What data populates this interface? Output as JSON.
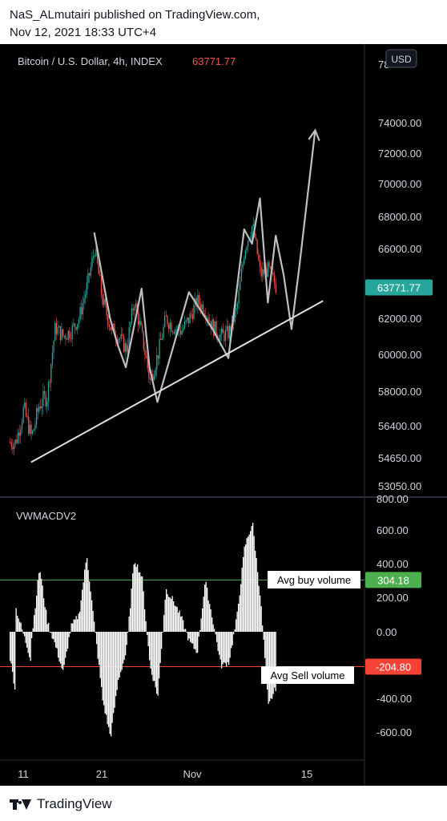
{
  "header": {
    "line1": "NaS_ALmutairi published on TradingView.com,",
    "line2": "Nov 12, 2021 18:33 UTC+4"
  },
  "footer": {
    "brand": "TradingView"
  },
  "colors": {
    "bull": "#26a69a",
    "bear": "#ef5350",
    "pattern": "#bfbfbf",
    "price_badge": "#26a69a",
    "buy_badge": "#4caf50",
    "sell_badge": "#f44336"
  },
  "chart_data": [
    {
      "type": "candlestick",
      "title": "Bitcoin / U.S. Dollar, 4h, INDEX",
      "last_price": "63771.77",
      "currency_button": "USD",
      "y_ticks": [
        "78",
        "74000.00",
        "72000.00",
        "70000.00",
        "68000.00",
        "66000.00",
        "62000.00",
        "60000.00",
        "58000.00",
        "56400.00",
        "54650.00",
        "53050.00"
      ],
      "close_path": [
        {
          "date": "2021-10-10",
          "price": 55500
        },
        {
          "date": "2021-10-11",
          "price": 57200
        },
        {
          "date": "2021-10-12",
          "price": 55800
        },
        {
          "date": "2021-10-13",
          "price": 57400
        },
        {
          "date": "2021-10-14",
          "price": 57800
        },
        {
          "date": "2021-10-15",
          "price": 61500
        },
        {
          "date": "2021-10-16",
          "price": 61000
        },
        {
          "date": "2021-10-17",
          "price": 61300
        },
        {
          "date": "2021-10-18",
          "price": 62000
        },
        {
          "date": "2021-10-19",
          "price": 63800
        },
        {
          "date": "2021-10-20",
          "price": 66000
        },
        {
          "date": "2021-10-21",
          "price": 63000
        },
        {
          "date": "2021-10-22",
          "price": 61500
        },
        {
          "date": "2021-10-23",
          "price": 61000
        },
        {
          "date": "2021-10-24",
          "price": 60300
        },
        {
          "date": "2021-10-25",
          "price": 63000
        },
        {
          "date": "2021-10-26",
          "price": 61000
        },
        {
          "date": "2021-10-27",
          "price": 58500
        },
        {
          "date": "2021-10-28",
          "price": 60000
        },
        {
          "date": "2021-10-29",
          "price": 62000
        },
        {
          "date": "2021-10-30",
          "price": 61500
        },
        {
          "date": "2021-10-31",
          "price": 61300
        },
        {
          "date": "2021-11-01",
          "price": 62000
        },
        {
          "date": "2021-11-02",
          "price": 63000
        },
        {
          "date": "2021-11-03",
          "price": 62500
        },
        {
          "date": "2021-11-04",
          "price": 61500
        },
        {
          "date": "2021-11-05",
          "price": 61000
        },
        {
          "date": "2021-11-06",
          "price": 61200
        },
        {
          "date": "2021-11-07",
          "price": 62500
        },
        {
          "date": "2021-11-08",
          "price": 66000
        },
        {
          "date": "2021-11-09",
          "price": 67500
        },
        {
          "date": "2021-11-10",
          "price": 64500
        },
        {
          "date": "2021-11-11",
          "price": 64800
        },
        {
          "date": "2021-11-12",
          "price": 63772
        }
      ],
      "pattern_points": [
        {
          "date": "2021-10-20",
          "price": 67000
        },
        {
          "date": "2021-10-22",
          "price": 62000
        },
        {
          "date": "2021-10-23",
          "price": 60500
        },
        {
          "date": "2021-10-24",
          "price": 59300
        },
        {
          "date": "2021-10-26",
          "price": 63700
        },
        {
          "date": "2021-10-27",
          "price": 59300
        },
        {
          "date": "2021-10-28",
          "price": 57500
        },
        {
          "date": "2021-11-01",
          "price": 63500
        },
        {
          "date": "2021-11-04",
          "price": 61400
        },
        {
          "date": "2021-11-06",
          "price": 59800
        },
        {
          "date": "2021-11-08",
          "price": 67200
        },
        {
          "date": "2021-11-09",
          "price": 66300
        },
        {
          "date": "2021-11-10",
          "price": 69100
        },
        {
          "date": "2021-11-11",
          "price": 62900
        },
        {
          "date": "2021-11-12",
          "price": 66800
        },
        {
          "date": "2021-11-13",
          "price": 64500
        },
        {
          "date": "2021-11-14",
          "price": 61400
        },
        {
          "date": "2021-11-15",
          "price": 65000
        },
        {
          "date": "2021-11-17",
          "price": 73500
        }
      ],
      "trendline": [
        {
          "date": "2021-10-12",
          "price": 54400
        },
        {
          "date": "2021-11-18",
          "price": 63000
        }
      ]
    },
    {
      "type": "histogram",
      "title": "VWMACDV2",
      "y_ticks": [
        "800.00",
        "600.00",
        "400.00",
        "200.00",
        "0.00",
        "-400.00",
        "-600.00"
      ],
      "ylim": [
        -620,
        640
      ],
      "avg_buy": {
        "label": "Avg buy volume",
        "value": 304.18,
        "display": "304.18"
      },
      "avg_sell": {
        "label": "Avg Sell volume",
        "value": -204.8,
        "display": "-204.80"
      },
      "profile": [
        {
          "date": "2021-10-09",
          "value": -80
        },
        {
          "date": "2021-10-10",
          "value": -360
        },
        {
          "date": "2021-10-10",
          "value": 140
        },
        {
          "date": "2021-10-12",
          "value": -180
        },
        {
          "date": "2021-10-12",
          "value": -40
        },
        {
          "date": "2021-10-13",
          "value": 380
        },
        {
          "date": "2021-10-14",
          "value": 60
        },
        {
          "date": "2021-10-15",
          "value": -80
        },
        {
          "date": "2021-10-16",
          "value": -240
        },
        {
          "date": "2021-10-17",
          "value": 30
        },
        {
          "date": "2021-10-18",
          "value": 100
        },
        {
          "date": "2021-10-19",
          "value": 450
        },
        {
          "date": "2021-10-20",
          "value": 20
        },
        {
          "date": "2021-10-21",
          "value": -400
        },
        {
          "date": "2021-10-22",
          "value": -620
        },
        {
          "date": "2021-10-23",
          "value": -280
        },
        {
          "date": "2021-10-24",
          "value": -120
        },
        {
          "date": "2021-10-25",
          "value": 430
        },
        {
          "date": "2021-10-26",
          "value": 320
        },
        {
          "date": "2021-10-27",
          "value": -200
        },
        {
          "date": "2021-10-28",
          "value": -380
        },
        {
          "date": "2021-10-29",
          "value": 250
        },
        {
          "date": "2021-10-30",
          "value": 180
        },
        {
          "date": "2021-10-31",
          "value": 80
        },
        {
          "date": "2021-11-01",
          "value": -60
        },
        {
          "date": "2021-11-02",
          "value": -120
        },
        {
          "date": "2021-11-03",
          "value": 300
        },
        {
          "date": "2021-11-04",
          "value": 60
        },
        {
          "date": "2021-11-05",
          "value": -200
        },
        {
          "date": "2021-11-06",
          "value": -180
        },
        {
          "date": "2021-11-07",
          "value": 80
        },
        {
          "date": "2021-11-08",
          "value": 500
        },
        {
          "date": "2021-11-09",
          "value": 640
        },
        {
          "date": "2021-11-10",
          "value": 200
        },
        {
          "date": "2021-11-11",
          "value": -440
        },
        {
          "date": "2021-11-12",
          "value": -320
        }
      ],
      "x_ticks": [
        "11",
        "21",
        "Nov",
        "15"
      ]
    }
  ]
}
